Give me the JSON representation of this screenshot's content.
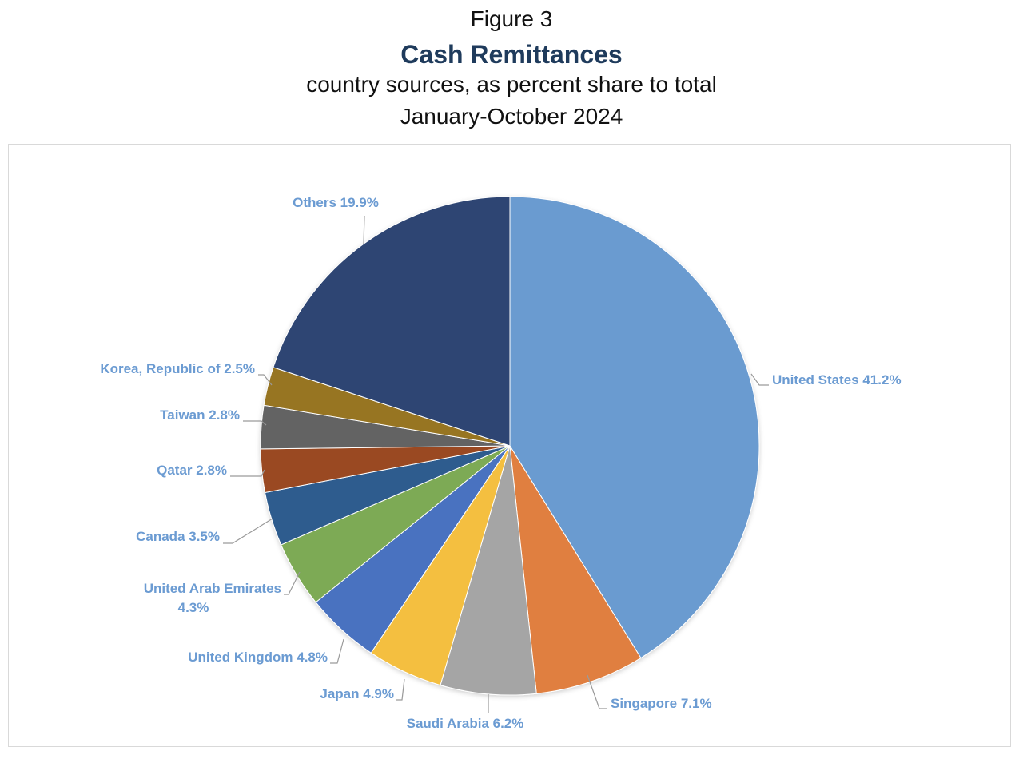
{
  "header": {
    "figure_label": "Figure 3",
    "title": "Cash Remittances",
    "subtitle_line1": "country sources, as percent share to total",
    "subtitle_line2": "January-October 2024"
  },
  "colors": {
    "title": "#1f3b5c",
    "label": "#6b9bd2",
    "leader": "#9a9a9a"
  },
  "chart_data": {
    "type": "pie",
    "title": "Cash Remittances",
    "unit": "%",
    "start_angle_deg": 0,
    "direction": "clockwise",
    "slices": [
      {
        "name": "United States",
        "value": 41.2,
        "label": "United States 41.2%",
        "color": "#6a9bd0"
      },
      {
        "name": "Singapore",
        "value": 7.1,
        "label": "Singapore 7.1%",
        "color": "#e07f3f"
      },
      {
        "name": "Saudi Arabia",
        "value": 6.2,
        "label": "Saudi Arabia 6.2%",
        "color": "#a5a5a5"
      },
      {
        "name": "Japan",
        "value": 4.9,
        "label": "Japan 4.9%",
        "color": "#f4bf40"
      },
      {
        "name": "United Kingdom",
        "value": 4.8,
        "label": "United Kingdom 4.8%",
        "color": "#4a72c0"
      },
      {
        "name": "United Arab Emirates",
        "value": 4.3,
        "label": "United Arab Emirates|4.3%",
        "color": "#7daa55"
      },
      {
        "name": "Canada",
        "value": 3.5,
        "label": "Canada 3.5%",
        "color": "#2e5b8e"
      },
      {
        "name": "Qatar",
        "value": 2.8,
        "label": "Qatar 2.8%",
        "color": "#9a4a20"
      },
      {
        "name": "Taiwan",
        "value": 2.8,
        "label": "Taiwan 2.8%",
        "color": "#636363"
      },
      {
        "name": "Korea, Republic of",
        "value": 2.5,
        "label": "Korea, Republic of 2.5%",
        "color": "#977424"
      },
      {
        "name": "Others",
        "value": 19.9,
        "label": "Others 19.9%",
        "color": "#2d4573"
      }
    ]
  }
}
